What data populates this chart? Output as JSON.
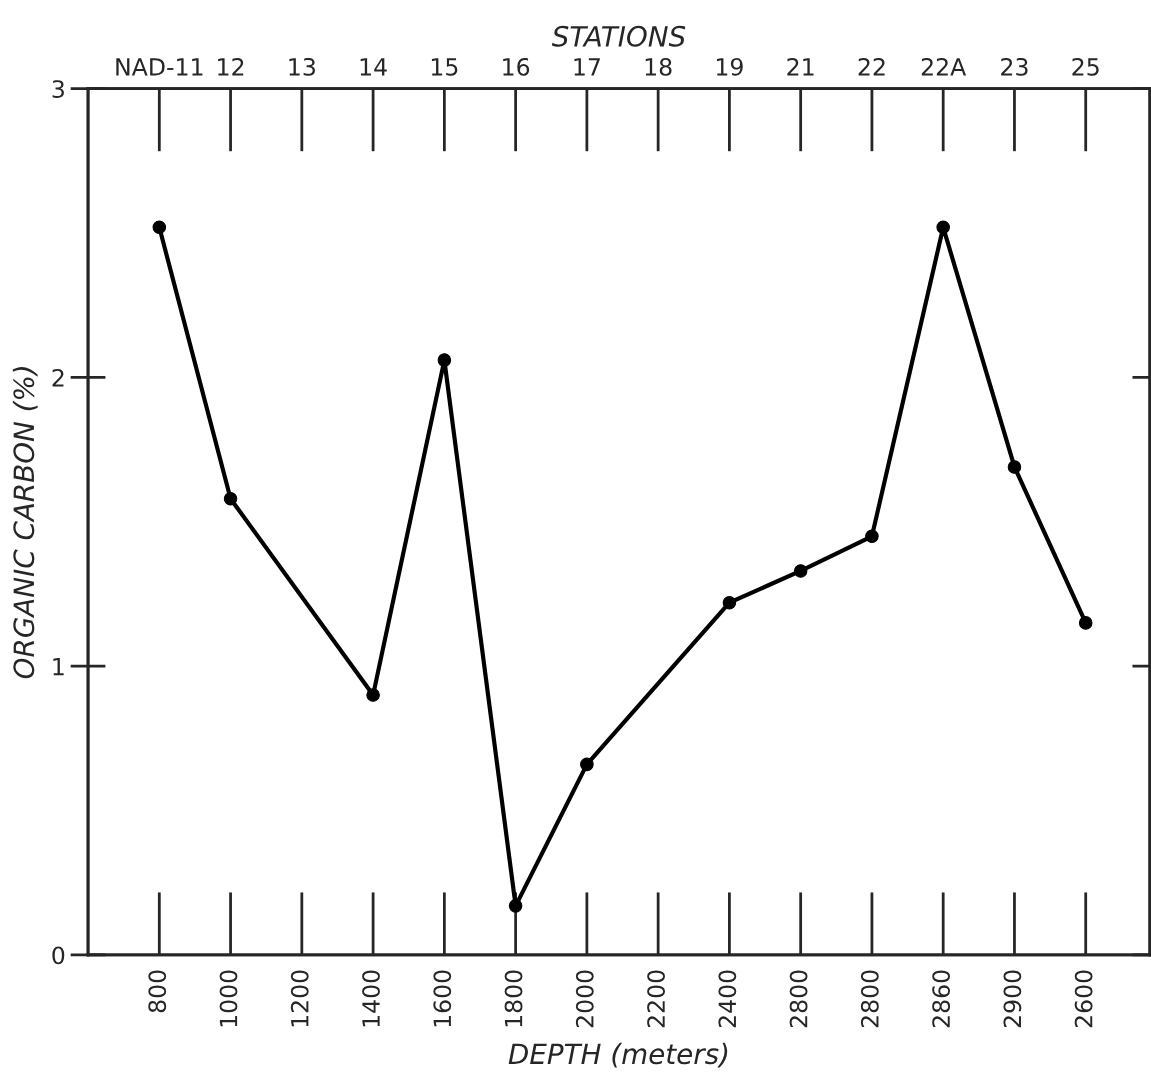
{
  "chart_data": {
    "type": "line",
    "xlabel": "DEPTH (meters)",
    "ylabel": "ORGANIC CARBON (%)",
    "x2label": "STATIONS",
    "categories": [
      "800",
      "1000",
      "1200",
      "1400",
      "1600",
      "1800",
      "2000",
      "2200",
      "2400",
      "2800",
      "2800",
      "2860",
      "2900",
      "2600"
    ],
    "annotations": [
      "NAD-11",
      "12",
      "13",
      "14",
      "15",
      "16",
      "17",
      "18",
      "19",
      "21",
      "22",
      "22A",
      "23",
      "25"
    ],
    "series": [
      {
        "color": "#000000",
        "values": [
          2.52,
          1.58,
          null,
          0.9,
          2.06,
          0.17,
          0.66,
          null,
          1.22,
          1.33,
          1.45,
          2.52,
          1.69,
          1.15
        ]
      }
    ],
    "ylim": [
      0,
      3
    ],
    "yticks": [
      0,
      1,
      2,
      3
    ],
    "marker": "circle",
    "line_style": "solid",
    "grid": false
  }
}
